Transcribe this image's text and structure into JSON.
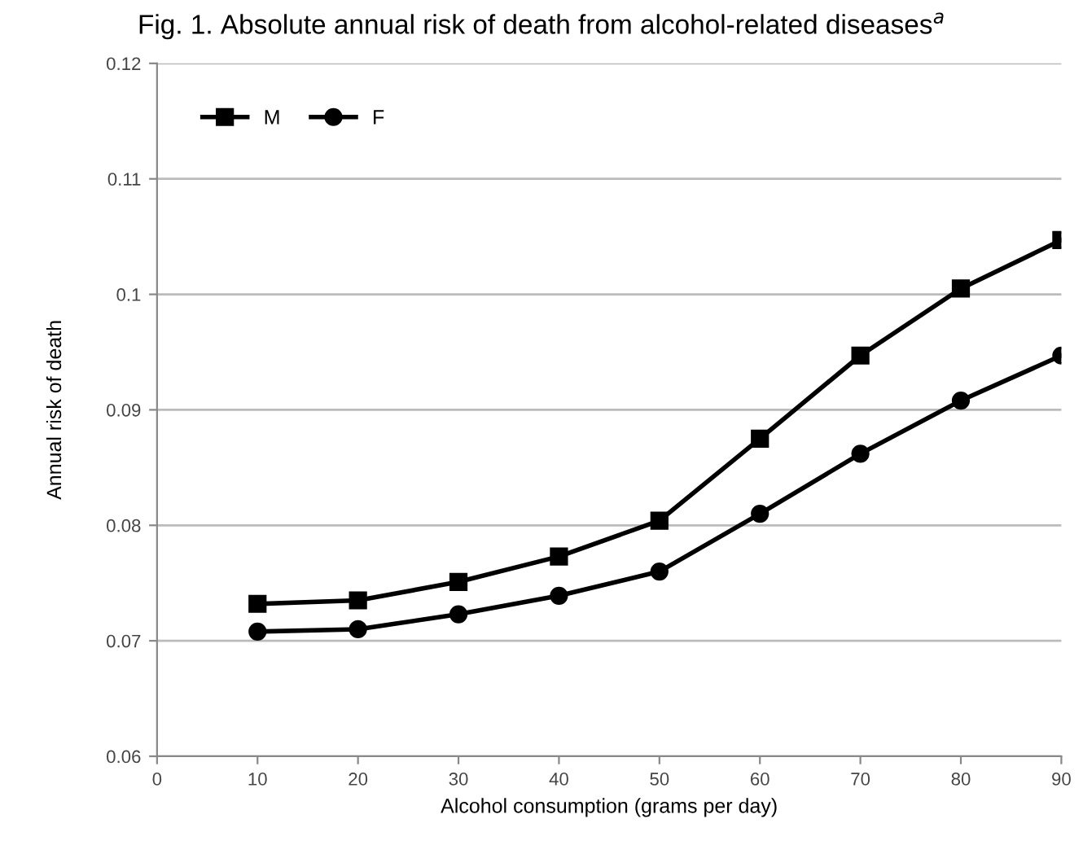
{
  "chart_data": {
    "type": "line",
    "title": "Fig. 1. Absolute annual risk of death from alcohol-related diseases$^{a}$",
    "xlabel": "Alcohol consumption (grams per day)",
    "ylabel": "Annual risk of death",
    "x": [
      10,
      20,
      30,
      40,
      50,
      60,
      70,
      80,
      90
    ],
    "series": [
      {
        "name": "M",
        "color": "#000000",
        "marker": "square",
        "values": [
          0.0732,
          0.0735,
          0.0751,
          0.0773,
          0.0804,
          0.0875,
          0.0947,
          0.1005,
          0.1047
        ]
      },
      {
        "name": "F",
        "color": "#000000",
        "marker": "circle",
        "values": [
          0.0708,
          0.071,
          0.0723,
          0.0739,
          0.076,
          0.081,
          0.0862,
          0.0908,
          0.0947
        ]
      }
    ],
    "xlim": [
      0,
      90
    ],
    "xticks": [
      0,
      10,
      20,
      30,
      40,
      50,
      60,
      70,
      80,
      90
    ],
    "ylim": [
      0.06,
      0.12
    ],
    "yticks": [
      0.06,
      0.07,
      0.08,
      0.09,
      0.1,
      0.11,
      0.12
    ],
    "grid": "y",
    "legend": "top left",
    "line_style": "solid"
  }
}
